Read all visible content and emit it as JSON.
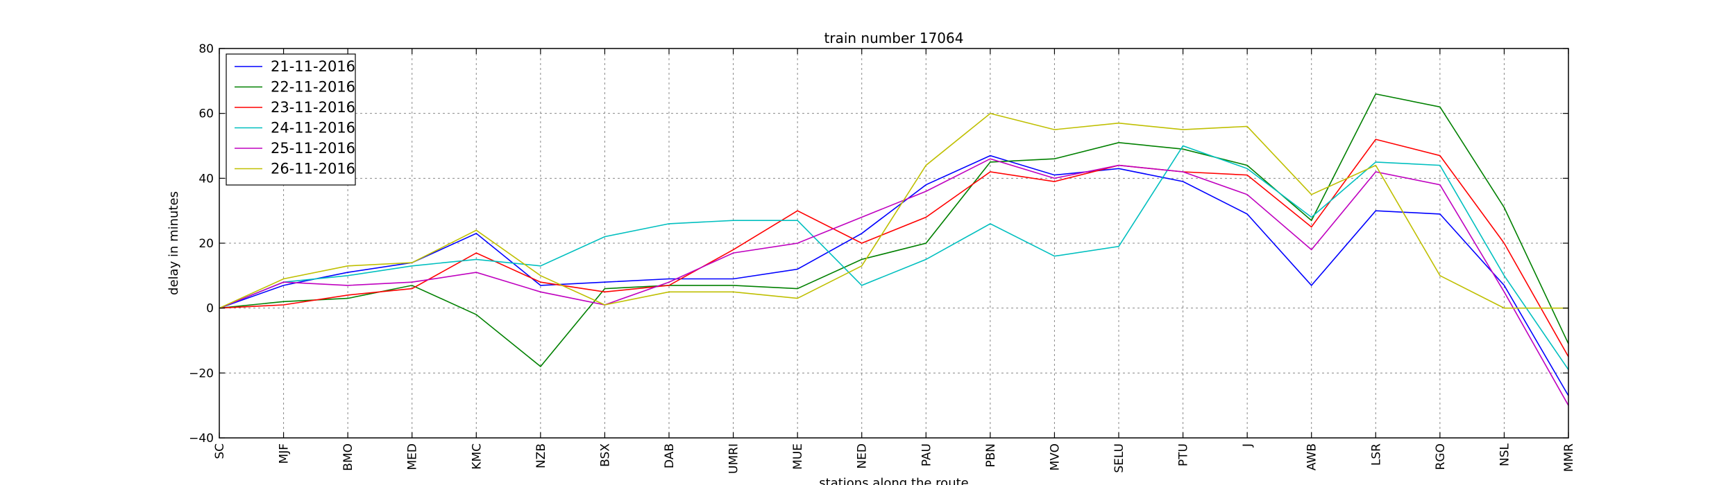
{
  "chart_data": {
    "type": "line",
    "title": "train number 17064",
    "xlabel": "stations along the route",
    "ylabel": "delay in minutes",
    "categories": [
      "SC",
      "MJF",
      "BMO",
      "MED",
      "KMC",
      "NZB",
      "BSX",
      "DAB",
      "UMRI",
      "MUE",
      "NED",
      "PAU",
      "PBN",
      "MVO",
      "SELU",
      "PTU",
      "J",
      "AWB",
      "LSR",
      "RGO",
      "NSL",
      "MMR"
    ],
    "ylim": [
      -40,
      80
    ],
    "yticks": [
      -40,
      -20,
      0,
      20,
      40,
      60,
      80
    ],
    "ytick_labels": [
      "−40",
      "−20",
      "0",
      "20",
      "40",
      "60",
      "80"
    ],
    "grid": true,
    "legend_position": "upper-left",
    "series": [
      {
        "name": "21-11-2016",
        "color": "#0000ff",
        "values": [
          0,
          7,
          11,
          14,
          23,
          7,
          8,
          9,
          9,
          12,
          23,
          38,
          47,
          41,
          43,
          39,
          29,
          7,
          30,
          29,
          7,
          -27
        ]
      },
      {
        "name": "22-11-2016",
        "color": "#008000",
        "values": [
          0,
          2,
          3,
          7,
          -2,
          -18,
          6,
          7,
          7,
          6,
          15,
          20,
          45,
          46,
          51,
          49,
          44,
          27,
          66,
          62,
          31,
          -11
        ]
      },
      {
        "name": "23-11-2016",
        "color": "#ff0000",
        "values": [
          0,
          1,
          4,
          6,
          17,
          8,
          5,
          7,
          18,
          30,
          20,
          28,
          42,
          39,
          44,
          42,
          41,
          25,
          52,
          47,
          20,
          -15
        ]
      },
      {
        "name": "24-11-2016",
        "color": "#00bfbf",
        "values": [
          0,
          8,
          10,
          13,
          15,
          13,
          22,
          26,
          27,
          27,
          7,
          15,
          26,
          16,
          19,
          50,
          43,
          28,
          45,
          44,
          10,
          -19
        ]
      },
      {
        "name": "25-11-2016",
        "color": "#bf00bf",
        "values": [
          0,
          8,
          7,
          8,
          11,
          5,
          1,
          8,
          17,
          20,
          28,
          36,
          46,
          40,
          44,
          42,
          35,
          18,
          42,
          38,
          5,
          -30
        ]
      },
      {
        "name": "26-11-2016",
        "color": "#bfbf00",
        "values": [
          0,
          9,
          13,
          14,
          24,
          10,
          1,
          5,
          5,
          3,
          13,
          44,
          60,
          55,
          57,
          55,
          56,
          35,
          44,
          10,
          0,
          0
        ]
      }
    ]
  }
}
